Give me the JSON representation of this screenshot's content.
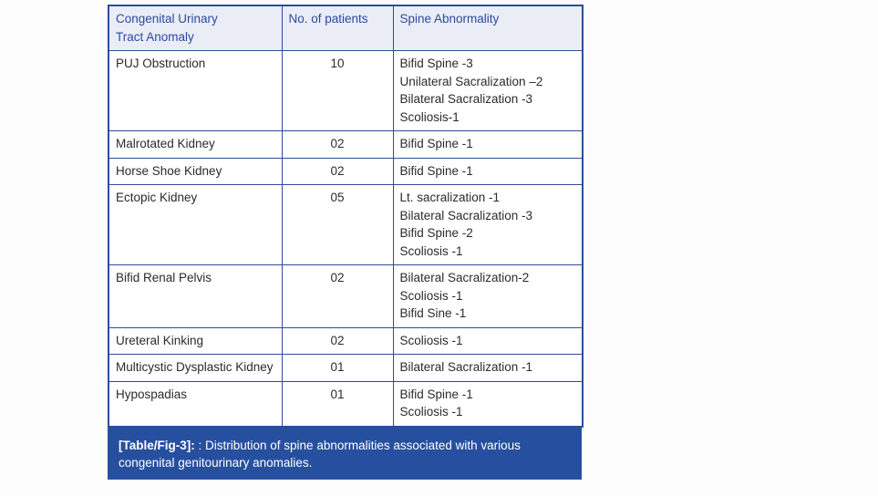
{
  "colors": {
    "border": "#2e4d97",
    "header_bg": "#eaecf6",
    "header_text": "#2b4a9e",
    "body_text": "#2b2b2b",
    "caption_bg": "#26509f",
    "caption_text": "#ffffff",
    "page_bg": "#fdfdfd"
  },
  "table": {
    "headers": [
      "Congenital Urinary\nTract Anomaly",
      "No. of patients",
      "Spine Abnormality"
    ],
    "rows": [
      {
        "anomaly": "PUJ Obstruction",
        "patients": "10",
        "spine": "Bifid Spine -3\nUnilateral Sacralization –2\nBilateral Sacralization -3\nScoliosis-1"
      },
      {
        "anomaly": "Malrotated Kidney",
        "patients": "02",
        "spine": "Bifid Spine -1"
      },
      {
        "anomaly": "Horse Shoe Kidney",
        "patients": "02",
        "spine": "Bifid Spine -1"
      },
      {
        "anomaly": "Ectopic Kidney",
        "patients": "05",
        "spine": "Lt. sacralization -1\nBilateral Sacralization -3\nBifid Spine -2\nScoliosis -1"
      },
      {
        "anomaly": "Bifid Renal Pelvis",
        "patients": "02",
        "spine": "Bilateral Sacralization-2\nScoliosis -1\nBifid Sine -1"
      },
      {
        "anomaly": "Ureteral Kinking",
        "patients": "02",
        "spine": "Scoliosis -1"
      },
      {
        "anomaly": "Multicystic Dysplastic Kidney",
        "patients": "01",
        "spine": "Bilateral Sacralization -1"
      },
      {
        "anomaly": "Hypospadias",
        "patients": "01",
        "spine": "Bifid Spine -1\nScoliosis -1"
      }
    ]
  },
  "caption": {
    "label": "[Table/Fig-3]:",
    "text": " : Distribution of spine abnormalities associated with various congenital genitourinary anomalies."
  }
}
